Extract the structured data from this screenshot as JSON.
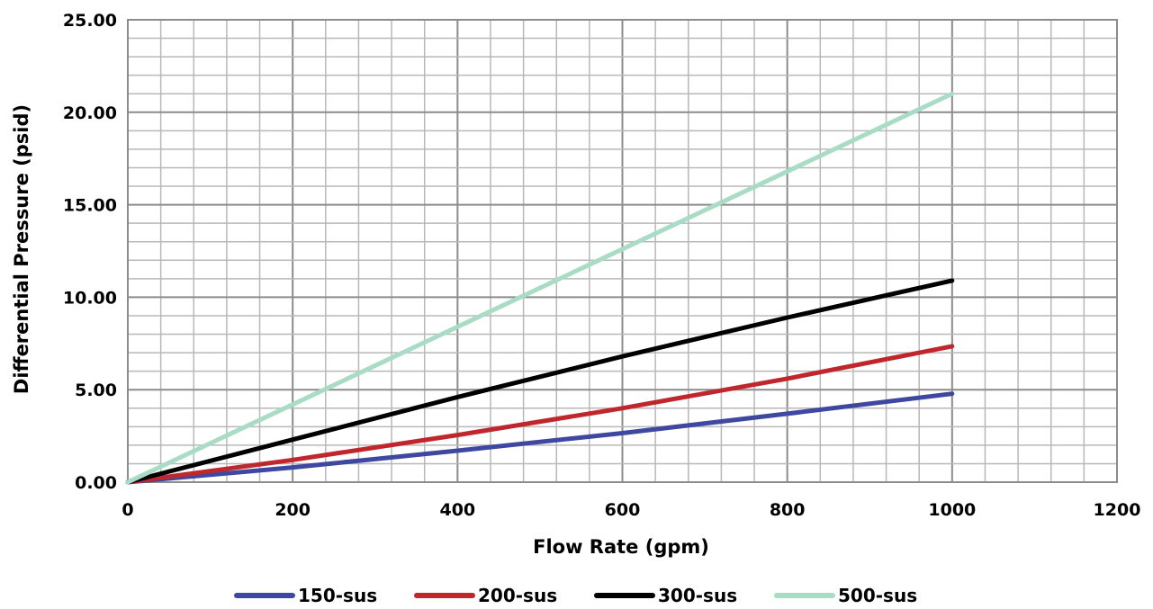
{
  "chart_data": {
    "type": "line",
    "xlabel": "Flow Rate (gpm)",
    "ylabel": "Differential Pressure (psid)",
    "xlim": [
      0,
      1200
    ],
    "ylim": [
      0,
      25
    ],
    "x_ticks": [
      "0",
      "200",
      "400",
      "600",
      "800",
      "1000",
      "1200"
    ],
    "y_ticks": [
      "0.00",
      "5.00",
      "10.00",
      "15.00",
      "20.00",
      "25.00"
    ],
    "x_tick_values": [
      0,
      200,
      400,
      600,
      800,
      1000,
      1200
    ],
    "y_tick_values": [
      0,
      5,
      10,
      15,
      20,
      25
    ],
    "x_minor_step": 40,
    "y_minor_step": 1,
    "grid": true,
    "legend_position": "bottom",
    "series": [
      {
        "name": "150-sus",
        "color": "#3f48a0",
        "x": [
          0,
          200,
          400,
          600,
          800,
          1000
        ],
        "y": [
          0,
          0.8,
          1.7,
          2.65,
          3.7,
          4.78
        ]
      },
      {
        "name": "200-sus",
        "color": "#c0272d",
        "x": [
          0,
          200,
          400,
          600,
          800,
          1000
        ],
        "y": [
          0,
          1.2,
          2.55,
          4.0,
          5.6,
          7.35
        ]
      },
      {
        "name": "300-sus",
        "color": "#000000",
        "x": [
          0,
          200,
          400,
          600,
          800,
          1000
        ],
        "y": [
          0,
          2.3,
          4.6,
          6.8,
          8.9,
          10.9
        ]
      },
      {
        "name": "500-sus",
        "color": "#a8dcc4",
        "x": [
          0,
          1000
        ],
        "y": [
          0,
          21.0
        ]
      }
    ]
  }
}
